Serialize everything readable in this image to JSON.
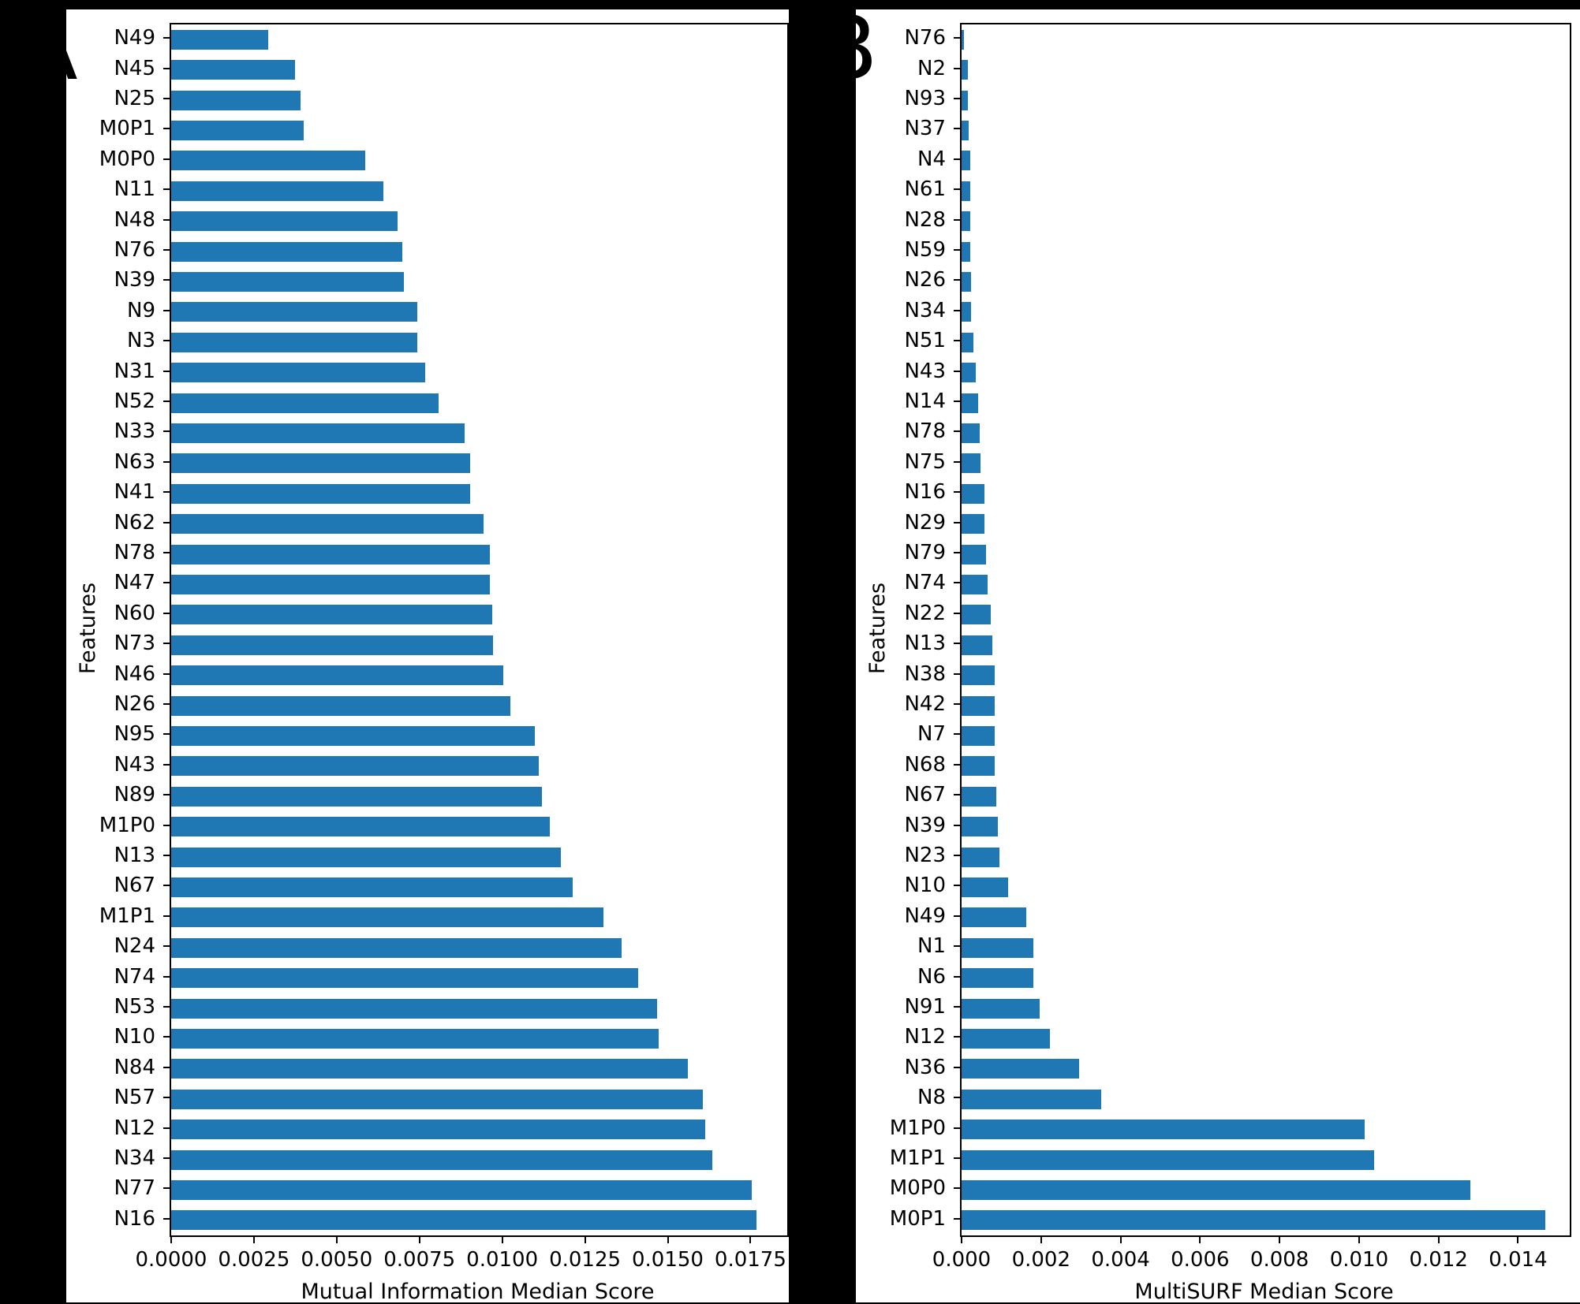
{
  "figure": {
    "background_color": "#000000",
    "panel_color": "#ffffff",
    "bar_color": "#1f77b4",
    "axis_color": "#000000"
  },
  "chart_data": [
    {
      "type": "bar",
      "orientation": "horizontal",
      "panel_label": "A",
      "xlabel": "Mutual Information Median Score",
      "ylabel": "Features",
      "xlim": [
        0,
        0.01861
      ],
      "grid": false,
      "legend": null,
      "xtick_labels": [
        "0.0000",
        "0.0025",
        "0.0050",
        "0.0075",
        "0.0100",
        "0.0125",
        "0.0150",
        "0.0175"
      ],
      "xtick_values": [
        0,
        0.0025,
        0.005,
        0.0075,
        0.01,
        0.0125,
        0.015,
        0.0175
      ],
      "categories": [
        "N49",
        "N45",
        "N25",
        "M0P1",
        "M0P0",
        "N11",
        "N48",
        "N76",
        "N39",
        "N9",
        "N3",
        "N31",
        "N52",
        "N33",
        "N63",
        "N41",
        "N62",
        "N78",
        "N47",
        "N60",
        "N73",
        "N46",
        "N26",
        "N95",
        "N43",
        "N89",
        "M1P0",
        "N13",
        "N67",
        "M1P1",
        "N24",
        "N74",
        "N53",
        "N10",
        "N84",
        "N57",
        "N12",
        "N34",
        "N77",
        "N16"
      ],
      "values": [
        0.00293,
        0.00374,
        0.0039,
        0.004,
        0.00585,
        0.0064,
        0.00683,
        0.00698,
        0.00702,
        0.00744,
        0.00744,
        0.00767,
        0.00807,
        0.00886,
        0.00903,
        0.00903,
        0.00943,
        0.00962,
        0.00962,
        0.00971,
        0.00972,
        0.01003,
        0.01025,
        0.01099,
        0.01111,
        0.01119,
        0.01144,
        0.01176,
        0.01212,
        0.01306,
        0.0136,
        0.0141,
        0.01468,
        0.01472,
        0.01561,
        0.01606,
        0.01614,
        0.01634,
        0.01754,
        0.01767
      ]
    },
    {
      "type": "bar",
      "orientation": "horizontal",
      "panel_label": "B",
      "xlabel": "MultiSURF Median Score",
      "ylabel": "Features",
      "xlim": [
        0,
        0.0153
      ],
      "grid": false,
      "legend": null,
      "xtick_labels": [
        "0.000",
        "0.002",
        "0.004",
        "0.006",
        "0.008",
        "0.010",
        "0.012",
        "0.014"
      ],
      "xtick_values": [
        0,
        0.002,
        0.004,
        0.006,
        0.008,
        0.01,
        0.012,
        0.014
      ],
      "categories": [
        "N76",
        "N2",
        "N93",
        "N37",
        "N4",
        "N61",
        "N28",
        "N59",
        "N26",
        "N34",
        "N51",
        "N43",
        "N14",
        "N78",
        "N75",
        "N16",
        "N29",
        "N79",
        "N74",
        "N22",
        "N13",
        "N38",
        "N42",
        "N7",
        "N68",
        "N67",
        "N39",
        "N23",
        "N10",
        "N49",
        "N1",
        "N6",
        "N91",
        "N12",
        "N36",
        "N8",
        "M1P0",
        "M1P1",
        "M0P0",
        "M0P1"
      ],
      "values": [
        5e-05,
        0.00015,
        0.00015,
        0.00018,
        0.00021,
        0.00021,
        0.00021,
        0.00022,
        0.00024,
        0.00024,
        0.0003,
        0.00036,
        0.00041,
        0.00046,
        0.00048,
        0.00058,
        0.00058,
        0.00062,
        0.00065,
        0.00074,
        0.00077,
        0.00084,
        0.00084,
        0.00084,
        0.00084,
        0.00087,
        0.00091,
        0.00095,
        0.00117,
        0.00163,
        0.0018,
        0.0018,
        0.00196,
        0.00222,
        0.00296,
        0.00351,
        0.01015,
        0.01037,
        0.0128,
        0.01469
      ]
    }
  ]
}
